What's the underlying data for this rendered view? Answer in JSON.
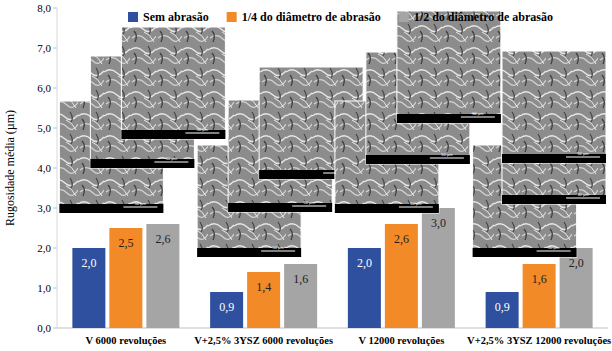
{
  "chart_data": {
    "type": "bar",
    "y_label": "Rugosidade média (µm)",
    "categories": [
      "V 6000 revoluções",
      "V+2,5% 3YSZ 6000 revoluções",
      "V 12000 revoluções",
      "V+2,5% 3YSZ 12000 revoluções"
    ],
    "series": [
      {
        "name": "Sem abrasão",
        "color": "#2f4f9f",
        "values": [
          2.0,
          0.9,
          2.0,
          0.9
        ],
        "value_labels": [
          "2,0",
          "0,9",
          "2,0",
          "0,9"
        ]
      },
      {
        "name": "1/4 do diâmetro de abrasão",
        "color": "#f28a27",
        "values": [
          2.5,
          1.4,
          2.6,
          1.6
        ],
        "value_labels": [
          "2,5",
          "1,4",
          "2,6",
          "1,6"
        ]
      },
      {
        "name": "1/2 do diâmetro de abrasão",
        "color": "#a5a5a5",
        "values": [
          2.6,
          1.6,
          3.0,
          2.0
        ],
        "value_labels": [
          "2,6",
          "1,6",
          "3,0",
          "2,0"
        ]
      }
    ],
    "ylim": [
      0,
      8
    ],
    "yticks": [
      {
        "value": 0,
        "label": "0,0"
      },
      {
        "value": 1,
        "label": "1,0"
      },
      {
        "value": 2,
        "label": "2,0"
      },
      {
        "value": 3,
        "label": "3,0"
      },
      {
        "value": 4,
        "label": "4,0"
      },
      {
        "value": 5,
        "label": "5,0"
      },
      {
        "value": 6,
        "label": "6,0"
      },
      {
        "value": 7,
        "label": "7,0"
      },
      {
        "value": 8,
        "label": "8,0"
      }
    ],
    "grid": false,
    "legend": "top",
    "data_labels": true,
    "image_scale_label": "50 µm"
  }
}
